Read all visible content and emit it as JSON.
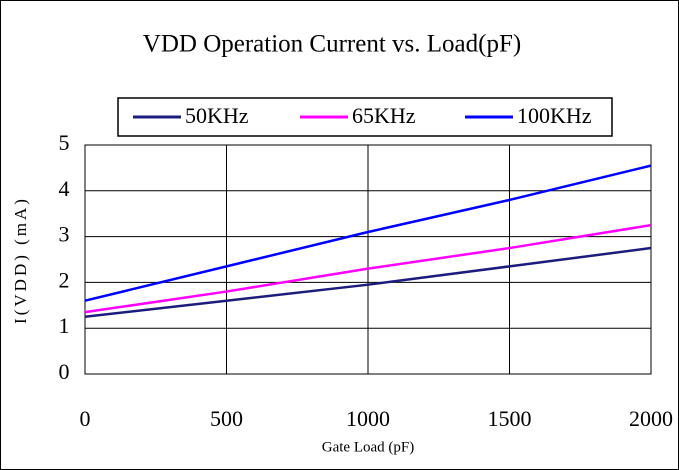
{
  "chart_data": {
    "type": "line",
    "title": "VDD Operation Current vs. Load(pF)",
    "xlabel": "Gate Load (pF)",
    "ylabel": "I(VDD) (mA)",
    "x": [
      0,
      500,
      1000,
      1500,
      2000
    ],
    "series": [
      {
        "name": "50KHz",
        "color": "#1c1c7c",
        "values": [
          1.25,
          1.6,
          1.95,
          2.35,
          2.75
        ]
      },
      {
        "name": "65KHz",
        "color": "#ff00ff",
        "values": [
          1.35,
          1.8,
          2.3,
          2.75,
          3.25
        ]
      },
      {
        "name": "100KHz",
        "color": "#0000ff",
        "values": [
          1.6,
          2.35,
          3.1,
          3.8,
          4.55
        ]
      }
    ],
    "xlim": [
      0,
      2000
    ],
    "xticks": [
      0,
      500,
      1000,
      1500,
      2000
    ],
    "ylim": [
      0,
      5
    ],
    "yticks": [
      0,
      1,
      2,
      3,
      4,
      5
    ],
    "grid": true,
    "legend": "top"
  }
}
